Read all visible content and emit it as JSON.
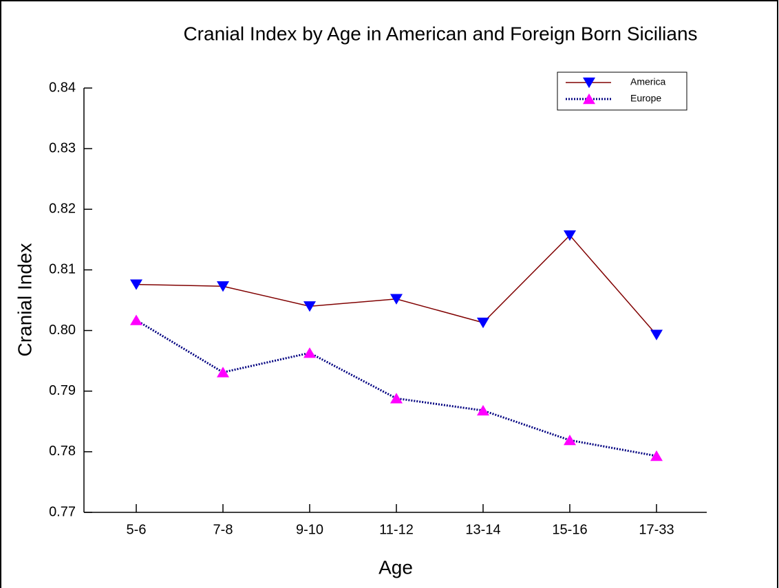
{
  "chart_data": {
    "type": "line",
    "title": "Cranial Index by Age in American and Foreign Born Sicilians",
    "xlabel": "Age",
    "ylabel": "Cranial Index",
    "categories": [
      "5-6",
      "7-8",
      "9-10",
      "11-12",
      "13-14",
      "15-16",
      "17-33"
    ],
    "series": [
      {
        "name": "America",
        "color": "#800000",
        "marker_color": "#0000ff",
        "marker": "down-triangle",
        "line_style": "solid",
        "values": [
          0.8076,
          0.8073,
          0.804,
          0.8052,
          0.8013,
          0.8157,
          0.7993
        ]
      },
      {
        "name": "Europe",
        "color": "#000080",
        "marker_color": "#ff00ff",
        "marker": "up-triangle",
        "line_style": "dotted",
        "values": [
          0.8017,
          0.7931,
          0.7963,
          0.7888,
          0.7868,
          0.7819,
          0.7793
        ]
      }
    ],
    "ylim": [
      0.77,
      0.84
    ],
    "yticks": [
      0.77,
      0.78,
      0.79,
      {
        "value": 0.8,
        "label": "0.80"
      },
      0.81,
      0.82,
      0.83,
      0.84
    ],
    "grid": false,
    "legend": "upper right"
  }
}
